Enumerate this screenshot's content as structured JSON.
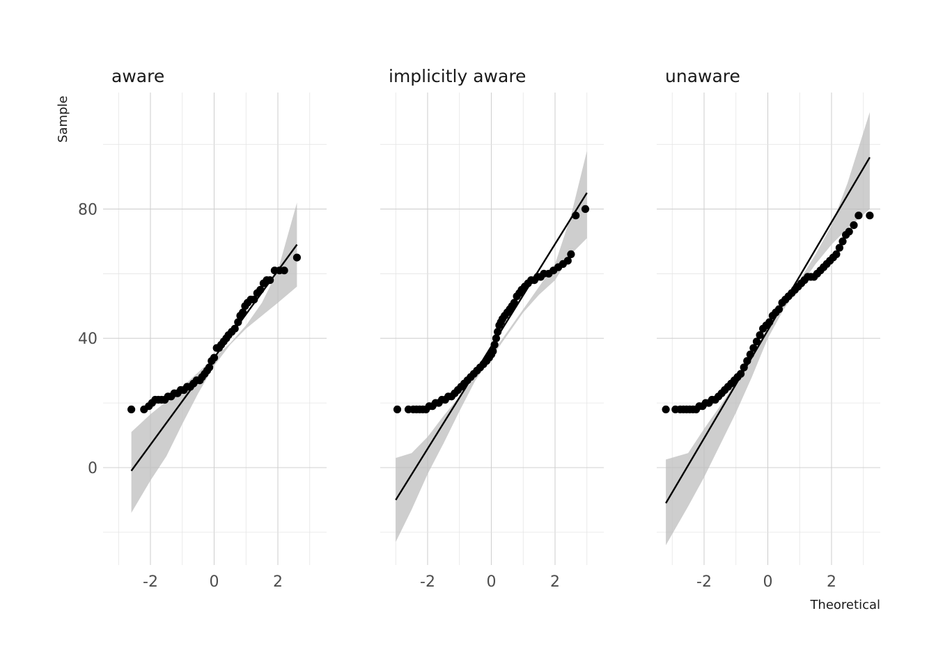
{
  "chart_data": {
    "type": "scatter",
    "subtype": "qq-plot",
    "xlabel": "Theoretical",
    "ylabel": "Sample",
    "xlim": [
      -3.5,
      3.5
    ],
    "ylim": [
      -30,
      115
    ],
    "x_ticks": [
      -2,
      0,
      2
    ],
    "y_ticks": [
      0,
      40,
      80
    ],
    "grid": true,
    "legend": "none",
    "colors": {
      "points": "#000000",
      "line": "#000000",
      "ribbon": "#bdbdbd",
      "grid": "#d0d0d0"
    },
    "facets": [
      {
        "title": "aware",
        "line": {
          "x": [
            -2.6,
            2.6
          ],
          "y": [
            -1,
            69
          ]
        },
        "band": {
          "x": [
            -2.6,
            -2,
            -1.5,
            -1,
            -0.5,
            0,
            0.5,
            1,
            1.5,
            2,
            2.6
          ],
          "upper": [
            11,
            16.5,
            20.5,
            25,
            29.5,
            34,
            38.5,
            44,
            51,
            61,
            82
          ],
          "lower": [
            -14,
            -4,
            3.5,
            13.5,
            23,
            31.5,
            38,
            43,
            47,
            51,
            56
          ]
        },
        "points": {
          "x": [
            -2.6,
            -2.2,
            -2.05,
            -1.95,
            -1.85,
            -1.75,
            -1.65,
            -1.55,
            -1.45,
            -1.35,
            -1.25,
            -1.15,
            -1.05,
            -0.95,
            -0.85,
            -0.75,
            -0.65,
            -0.55,
            -0.45,
            -0.38,
            -0.3,
            -0.22,
            -0.15,
            -0.08,
            0.0,
            0.08,
            0.15,
            0.22,
            0.3,
            0.38,
            0.45,
            0.55,
            0.65,
            0.75,
            0.82,
            0.9,
            0.97,
            1.05,
            1.15,
            1.25,
            1.35,
            1.45,
            1.55,
            1.65,
            1.75,
            1.9,
            2.05,
            2.2,
            2.6
          ],
          "y": [
            18,
            18,
            19,
            20,
            21,
            21,
            21,
            21,
            22,
            22,
            23,
            23,
            24,
            24,
            25,
            25,
            26,
            27,
            27,
            28,
            29,
            30,
            31,
            33,
            34,
            37,
            37,
            38,
            39,
            40,
            41,
            42,
            43,
            45,
            47,
            48,
            50,
            51,
            52,
            52,
            54,
            55,
            57,
            58,
            58,
            61,
            61,
            61,
            65
          ]
        }
      },
      {
        "title": "implicitly aware",
        "line": {
          "x": [
            -3,
            3
          ],
          "y": [
            -10,
            85
          ]
        },
        "band": {
          "x": [
            -3,
            -2.5,
            -2,
            -1.5,
            -1,
            -0.5,
            0,
            0.5,
            1,
            1.5,
            2,
            2.5,
            3
          ],
          "upper": [
            3,
            4.5,
            9.5,
            16,
            22,
            28,
            35,
            42,
            49,
            56,
            63,
            78,
            98
          ],
          "lower": [
            -23,
            -13,
            -2,
            7.5,
            17.5,
            27,
            34,
            41,
            48,
            53.5,
            58,
            66,
            71
          ]
        },
        "points": {
          "x": [
            -2.95,
            -2.6,
            -2.45,
            -2.35,
            -2.25,
            -2.15,
            -2.05,
            -1.95,
            -1.85,
            -1.75,
            -1.65,
            -1.55,
            -1.45,
            -1.35,
            -1.25,
            -1.15,
            -1.05,
            -0.95,
            -0.85,
            -0.75,
            -0.65,
            -0.55,
            -0.45,
            -0.35,
            -0.25,
            -0.15,
            -0.07,
            0.0,
            0.05,
            0.1,
            0.15,
            0.2,
            0.25,
            0.3,
            0.35,
            0.42,
            0.5,
            0.58,
            0.65,
            0.72,
            0.8,
            0.88,
            0.95,
            1.05,
            1.15,
            1.25,
            1.35,
            1.45,
            1.55,
            1.65,
            1.8,
            1.95,
            2.1,
            2.25,
            2.4,
            2.5,
            2.65,
            2.95
          ],
          "y": [
            18,
            18,
            18,
            18,
            18,
            18,
            18,
            19,
            19,
            20,
            20,
            21,
            21,
            22,
            22,
            23,
            24,
            25,
            26,
            27,
            28,
            29,
            30,
            31,
            32,
            33,
            34,
            35,
            36,
            38,
            40,
            42,
            44,
            45,
            46,
            47,
            48,
            49,
            50,
            51,
            53,
            54,
            55,
            56,
            57,
            58,
            58,
            59,
            59,
            60,
            60,
            61,
            62,
            63,
            64,
            66,
            78,
            80
          ]
        }
      },
      {
        "title": "unaware",
        "line": {
          "x": [
            -3.2,
            3.2
          ],
          "y": [
            -11,
            96
          ]
        },
        "band": {
          "x": [
            -3.2,
            -2.5,
            -2,
            -1.5,
            -1,
            -0.5,
            0,
            0.5,
            1,
            1.5,
            2,
            2.5,
            3.2
          ],
          "upper": [
            2.5,
            4.5,
            12,
            19,
            26.5,
            34,
            42,
            50,
            58,
            66,
            75,
            88,
            110
          ],
          "lower": [
            -24,
            -12,
            -3,
            7,
            17,
            28,
            40,
            49,
            56,
            63,
            69,
            74,
            80
          ]
        },
        "points": {
          "x": [
            -3.2,
            -2.9,
            -2.75,
            -2.65,
            -2.55,
            -2.45,
            -2.35,
            -2.25,
            -2.15,
            -2.05,
            -1.95,
            -1.85,
            -1.75,
            -1.65,
            -1.55,
            -1.45,
            -1.35,
            -1.25,
            -1.15,
            -1.05,
            -0.95,
            -0.85,
            -0.75,
            -0.65,
            -0.55,
            -0.45,
            -0.35,
            -0.25,
            -0.15,
            -0.05,
            0.05,
            0.15,
            0.25,
            0.35,
            0.45,
            0.55,
            0.65,
            0.75,
            0.85,
            0.95,
            1.05,
            1.15,
            1.25,
            1.35,
            1.45,
            1.55,
            1.65,
            1.75,
            1.85,
            1.95,
            2.05,
            2.15,
            2.25,
            2.35,
            2.45,
            2.55,
            2.7,
            2.85,
            3.2
          ],
          "y": [
            18,
            18,
            18,
            18,
            18,
            18,
            18,
            18,
            19,
            19,
            20,
            20,
            21,
            21,
            22,
            23,
            24,
            25,
            26,
            27,
            28,
            29,
            31,
            33,
            35,
            37,
            39,
            41,
            43,
            44,
            45,
            47,
            48,
            49,
            51,
            52,
            53,
            54,
            55,
            56,
            57,
            58,
            59,
            59,
            59,
            60,
            61,
            62,
            63,
            64,
            65,
            66,
            68,
            70,
            72,
            73,
            75,
            78,
            78
          ]
        }
      }
    ]
  }
}
